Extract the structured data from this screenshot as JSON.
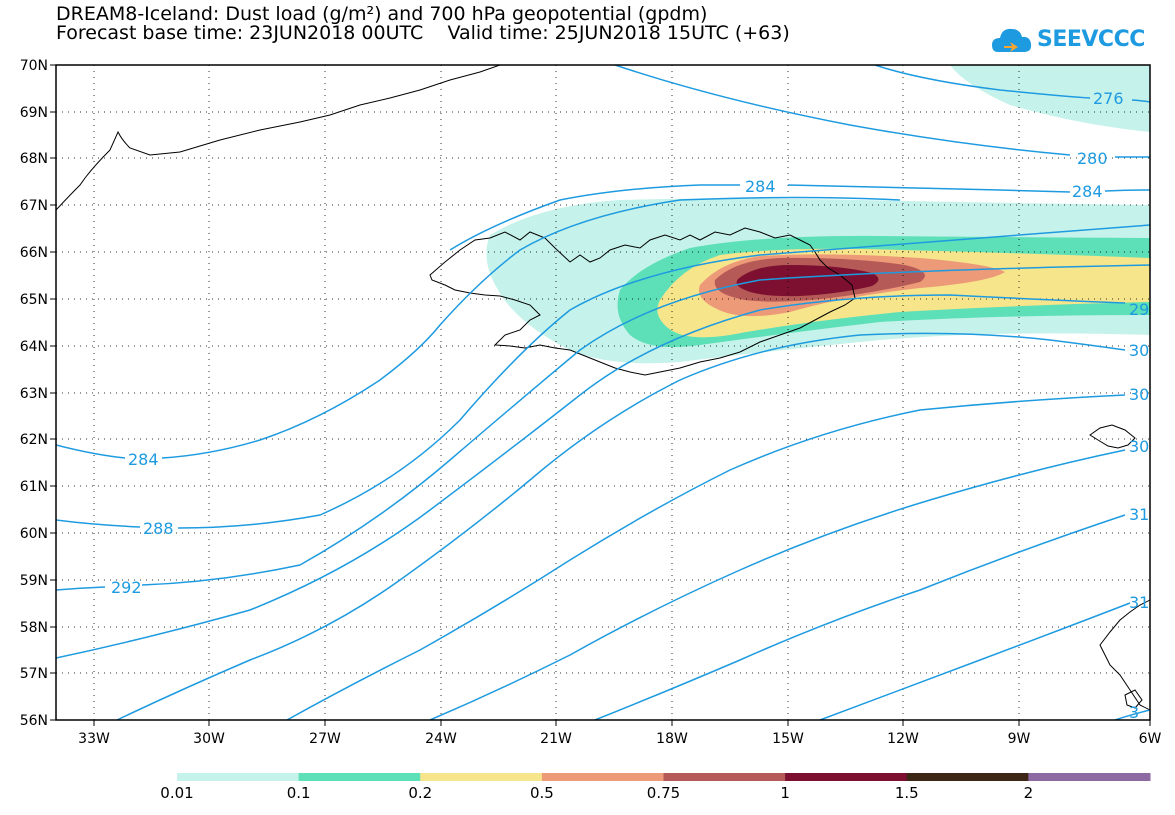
{
  "header": {
    "title_line1": "DREAM8-Iceland: Dust load (g/m²) and 700 hPa geopotential (gpdm)",
    "base_time": "Forecast base time: 23JUN2018 00UTC",
    "valid_time": "Valid time: 25JUN2018 15UTC (+63)"
  },
  "logo": {
    "text": "SEEVCCC",
    "icon": "cloud-logo-icon",
    "color": "#1e9be0"
  },
  "map": {
    "extent": {
      "lon_min": -34.5,
      "lon_max": -6,
      "lat_min": 56,
      "lat_max": 70
    },
    "lat_ticks": [
      "70N",
      "69N",
      "68N",
      "67N",
      "66N",
      "65N",
      "64N",
      "63N",
      "62N",
      "61N",
      "60N",
      "59N",
      "58N",
      "57N",
      "56N"
    ],
    "lon_ticks": [
      "33W",
      "30W",
      "27W",
      "24W",
      "21W",
      "18W",
      "15W",
      "12W",
      "9W",
      "6W"
    ],
    "contour_color": "#1e9be0",
    "contour_labels": [
      {
        "text": "276"
      },
      {
        "text": "280"
      },
      {
        "text": "284"
      },
      {
        "text": "284"
      },
      {
        "text": "284"
      },
      {
        "text": "288"
      },
      {
        "text": "292"
      },
      {
        "text": "29"
      },
      {
        "text": "30"
      },
      {
        "text": "30"
      },
      {
        "text": "30"
      },
      {
        "text": "31"
      },
      {
        "text": "31"
      },
      {
        "text": "3"
      }
    ]
  },
  "legend": {
    "colors": [
      "#c5f2ea",
      "#5ddfb8",
      "#f6e58b",
      "#ed9a78",
      "#b55a57",
      "#7d1030",
      "#3c2717",
      "#8e6aa2"
    ],
    "labels": [
      "0.01",
      "0.1",
      "0.2",
      "0.5",
      "0.75",
      "1",
      "1.5",
      "2"
    ]
  }
}
